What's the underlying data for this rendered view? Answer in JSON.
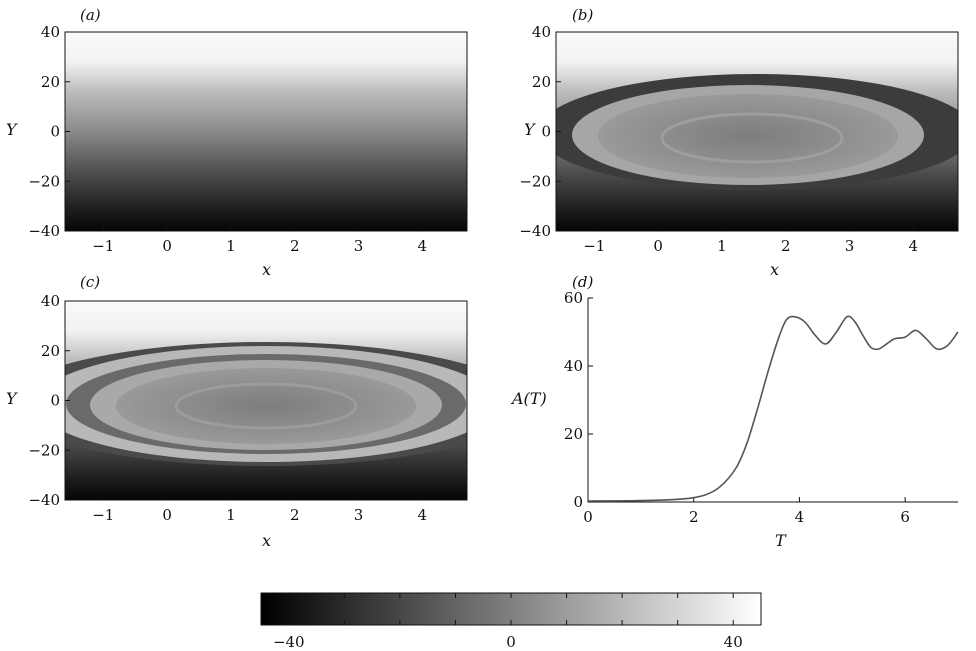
{
  "chart_data": [
    {
      "panel": "(a)",
      "type": "heatmap",
      "ylabel": "Y",
      "xlabel": "x",
      "x_ticks": [
        "−1",
        "0",
        "1",
        "2",
        "3",
        "4"
      ],
      "x_tick_values": [
        -1,
        0,
        1,
        2,
        3,
        4
      ],
      "y_ticks": [
        "40",
        "20",
        "0",
        "−20",
        "−40"
      ],
      "y_tick_values": [
        40,
        20,
        0,
        -20,
        -40
      ],
      "xlim": [
        -1.6,
        4.7
      ],
      "ylim": [
        -40,
        40
      ],
      "field": "stratified"
    },
    {
      "panel": "(b)",
      "type": "heatmap",
      "ylabel": "Y",
      "xlabel": "x",
      "x_ticks": [
        "−1",
        "0",
        "1",
        "2",
        "3",
        "4"
      ],
      "x_tick_values": [
        -1,
        0,
        1,
        2,
        3,
        4
      ],
      "y_ticks": [
        "40",
        "20",
        "0",
        "−20",
        "−40"
      ],
      "y_tick_values": [
        40,
        20,
        0,
        -20,
        -40
      ],
      "xlim": [
        -1.6,
        4.7
      ],
      "ylim": [
        -40,
        40
      ],
      "field": "vortex"
    },
    {
      "panel": "(c)",
      "type": "heatmap",
      "ylabel": "Y",
      "xlabel": "x",
      "x_ticks": [
        "−1",
        "0",
        "1",
        "2",
        "3",
        "4"
      ],
      "x_tick_values": [
        -1,
        0,
        1,
        2,
        3,
        4
      ],
      "y_ticks": [
        "40",
        "20",
        "0",
        "−20",
        "−40"
      ],
      "y_tick_values": [
        40,
        20,
        0,
        -20,
        -40
      ],
      "xlim": [
        -1.6,
        4.7
      ],
      "ylim": [
        -40,
        40
      ],
      "field": "vortex-mixed"
    },
    {
      "panel": "(d)",
      "type": "line",
      "xlabel": "T",
      "ylabel": "A(T)",
      "x_ticks": [
        "0",
        "2",
        "4",
        "6"
      ],
      "x_tick_values": [
        0,
        2,
        4,
        6
      ],
      "y_ticks": [
        "60",
        "40",
        "20",
        "0"
      ],
      "y_tick_values": [
        60,
        40,
        20,
        0
      ],
      "xlim": [
        0,
        7.0
      ],
      "ylim": [
        0,
        60
      ],
      "series": [
        {
          "x": [
            0,
            1,
            1.8,
            2.2,
            2.5,
            2.8,
            3.0,
            3.2,
            3.4,
            3.6,
            3.75,
            3.9,
            4.1,
            4.3,
            4.5,
            4.7,
            4.9,
            5.05,
            5.2,
            5.35,
            5.5,
            5.65,
            5.8,
            6.0,
            6.2,
            6.4,
            6.6,
            6.8,
            7.0
          ],
          "y": [
            0.3,
            0.4,
            0.9,
            2.0,
            4.5,
            10,
            17,
            27,
            38,
            48,
            53.5,
            54.5,
            53,
            49,
            46.5,
            50,
            54.5,
            53,
            49,
            45.5,
            45,
            46.5,
            48,
            48.5,
            50.5,
            48,
            45,
            46,
            50
          ]
        }
      ]
    }
  ],
  "colorbar": {
    "ticks": [
      "−40",
      "0",
      "40"
    ],
    "tick_values": [
      -40,
      0,
      40
    ],
    "range": [
      -45,
      45
    ]
  },
  "colors": {
    "ink": "#111111",
    "line": "#555555",
    "background": "#ffffff"
  }
}
